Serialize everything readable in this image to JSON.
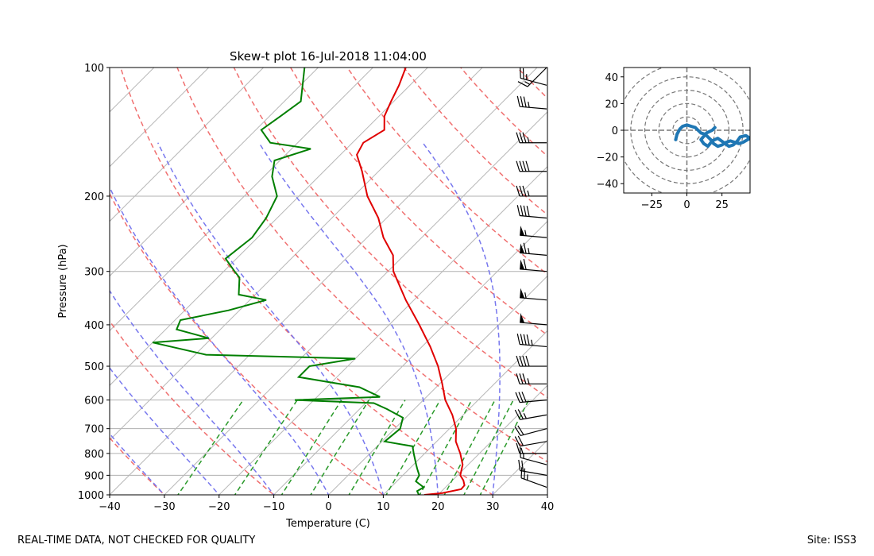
{
  "chart_data": [
    {
      "type": "skew-t",
      "title": "Skew-t plot 16-Jul-2018 11:04:00",
      "xlabel": "Temperature (C)",
      "ylabel": "Pressure (hPa)",
      "xlim": [
        -40,
        40
      ],
      "ylim": [
        1000,
        100
      ],
      "xticks": [
        -40,
        -30,
        -20,
        -10,
        0,
        10,
        20,
        30,
        40
      ],
      "yticks": [
        100,
        200,
        300,
        400,
        500,
        600,
        700,
        800,
        900,
        1000
      ],
      "series": [
        {
          "name": "temperature",
          "color": "#e00000",
          "points": [
            [
              1000,
              17.5
            ],
            [
              990,
              20.5
            ],
            [
              970,
              23.2
            ],
            [
              950,
              23.1
            ],
            [
              925,
              22.0
            ],
            [
              900,
              20.5
            ],
            [
              850,
              19.0
            ],
            [
              800,
              16.5
            ],
            [
              750,
              13.5
            ],
            [
              700,
              11.2
            ],
            [
              650,
              8.0
            ],
            [
              600,
              4.0
            ],
            [
              550,
              0.5
            ],
            [
              500,
              -3.5
            ],
            [
              450,
              -8.5
            ],
            [
              400,
              -14.5
            ],
            [
              350,
              -21.5
            ],
            [
              300,
              -29.0
            ],
            [
              275,
              -32.0
            ],
            [
              250,
              -37.0
            ],
            [
              225,
              -41.5
            ],
            [
              200,
              -47.5
            ],
            [
              175,
              -53.0
            ],
            [
              160,
              -57.0
            ],
            [
              150,
              -58.0
            ],
            [
              140,
              -56.5
            ],
            [
              130,
              -59.0
            ],
            [
              120,
              -60.5
            ],
            [
              110,
              -62.0
            ],
            [
              100,
              -64.0
            ]
          ]
        },
        {
          "name": "dewpoint",
          "color": "#007f00",
          "points": [
            [
              1000,
              16.5
            ],
            [
              980,
              15.5
            ],
            [
              960,
              16.0
            ],
            [
              930,
              13.5
            ],
            [
              900,
              13.0
            ],
            [
              870,
              11.5
            ],
            [
              850,
              10.5
            ],
            [
              800,
              8.0
            ],
            [
              770,
              6.5
            ],
            [
              750,
              0.5
            ],
            [
              700,
              1.0
            ],
            [
              660,
              -0.5
            ],
            [
              630,
              -5.0
            ],
            [
              610,
              -8.5
            ],
            [
              600,
              -23.5
            ],
            [
              590,
              -8.5
            ],
            [
              560,
              -14.0
            ],
            [
              530,
              -27.0
            ],
            [
              500,
              -27.0
            ],
            [
              480,
              -20.0
            ],
            [
              470,
              -48.0
            ],
            [
              440,
              -60.0
            ],
            [
              430,
              -50.5
            ],
            [
              410,
              -58.0
            ],
            [
              390,
              -59.0
            ],
            [
              370,
              -52.0
            ],
            [
              350,
              -47.0
            ],
            [
              340,
              -53.0
            ],
            [
              310,
              -56.0
            ],
            [
              300,
              -58.0
            ],
            [
              280,
              -62.0
            ],
            [
              250,
              -61.0
            ],
            [
              225,
              -62.0
            ],
            [
              200,
              -64.0
            ],
            [
              180,
              -68.5
            ],
            [
              165,
              -71.0
            ],
            [
              155,
              -66.5
            ],
            [
              150,
              -75.0
            ],
            [
              140,
              -79.0
            ],
            [
              130,
              -78.0
            ],
            [
              120,
              -77.0
            ],
            [
              100,
              -82.5
            ]
          ]
        }
      ],
      "wind_barbs": [
        {
          "p": 960,
          "speed_kt": 25,
          "dir_deg": 290
        },
        {
          "p": 900,
          "speed_kt": 20,
          "dir_deg": 280
        },
        {
          "p": 850,
          "speed_kt": 15,
          "dir_deg": 285
        },
        {
          "p": 800,
          "speed_kt": 15,
          "dir_deg": 270
        },
        {
          "p": 750,
          "speed_kt": 20,
          "dir_deg": 260
        },
        {
          "p": 700,
          "speed_kt": 20,
          "dir_deg": 255
        },
        {
          "p": 650,
          "speed_kt": 25,
          "dir_deg": 260
        },
        {
          "p": 600,
          "speed_kt": 30,
          "dir_deg": 265
        },
        {
          "p": 550,
          "speed_kt": 35,
          "dir_deg": 270
        },
        {
          "p": 500,
          "speed_kt": 40,
          "dir_deg": 270
        },
        {
          "p": 450,
          "speed_kt": 45,
          "dir_deg": 275
        },
        {
          "p": 400,
          "speed_kt": 50,
          "dir_deg": 275
        },
        {
          "p": 350,
          "speed_kt": 55,
          "dir_deg": 275
        },
        {
          "p": 300,
          "speed_kt": 60,
          "dir_deg": 275
        },
        {
          "p": 275,
          "speed_kt": 65,
          "dir_deg": 275
        },
        {
          "p": 250,
          "speed_kt": 55,
          "dir_deg": 275
        },
        {
          "p": 225,
          "speed_kt": 40,
          "dir_deg": 275
        },
        {
          "p": 200,
          "speed_kt": 35,
          "dir_deg": 270
        },
        {
          "p": 175,
          "speed_kt": 40,
          "dir_deg": 270
        },
        {
          "p": 150,
          "speed_kt": 35,
          "dir_deg": 270
        },
        {
          "p": 125,
          "speed_kt": 35,
          "dir_deg": 275
        },
        {
          "p": 110,
          "speed_kt": 25,
          "dir_deg": 285
        },
        {
          "p": 100,
          "speed_kt": 15,
          "dir_deg": 225
        }
      ]
    },
    {
      "type": "hodograph",
      "xlim": [
        -45,
        45
      ],
      "ylim": [
        -47,
        47
      ],
      "xticks": [
        -25,
        0,
        25
      ],
      "yticks": [
        -40,
        -20,
        0,
        20,
        40
      ],
      "rings": [
        10,
        20,
        30,
        40,
        50
      ],
      "color": "#1f77b4",
      "u": [
        -8,
        -7,
        -5,
        -3,
        0,
        3,
        6,
        8,
        10,
        13,
        15,
        17,
        19,
        22,
        25,
        28,
        31,
        34,
        37,
        40,
        45,
        42,
        38,
        36,
        33,
        30,
        26,
        22,
        18,
        15,
        12,
        10,
        14,
        18,
        20
      ],
      "v": [
        -7,
        -3,
        1,
        3,
        4,
        3,
        2,
        0,
        -2,
        -3,
        -5,
        -7,
        -10,
        -12,
        -11,
        -9,
        -8,
        -9,
        -10,
        -9,
        -6,
        -4,
        -5,
        -8,
        -11,
        -12,
        -9,
        -6,
        -8,
        -12,
        -10,
        -7,
        -2,
        0,
        2
      ]
    }
  ],
  "footer": {
    "left": "REAL-TIME DATA, NOT CHECKED FOR QUALITY",
    "right": "Site: ISS3"
  }
}
